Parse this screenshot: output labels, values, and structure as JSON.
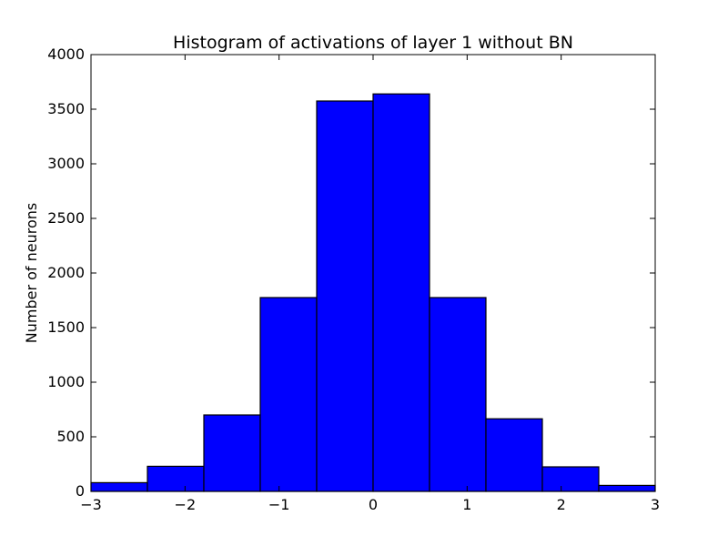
{
  "chart_data": {
    "type": "bar",
    "title": "Histogram of activations of layer 1  without BN",
    "xlabel": "",
    "ylabel": "Number of neurons",
    "xlim": [
      -3,
      3
    ],
    "ylim": [
      0,
      4000
    ],
    "bin_edges": [
      -3,
      -2.4,
      -1.8,
      -1.2,
      -0.6,
      0,
      0.6,
      1.2,
      1.8,
      2.4,
      3
    ],
    "values": [
      80,
      230,
      700,
      1775,
      3575,
      3640,
      1775,
      665,
      225,
      55
    ],
    "x_ticks": [
      -3,
      -2,
      -1,
      0,
      1,
      2,
      3
    ],
    "x_tick_labels": [
      "−3",
      "−2",
      "−1",
      "0",
      "1",
      "2",
      "3"
    ],
    "y_ticks": [
      0,
      500,
      1000,
      1500,
      2000,
      2500,
      3000,
      3500,
      4000
    ],
    "y_tick_labels": [
      "0",
      "500",
      "1000",
      "1500",
      "2000",
      "2500",
      "3000",
      "3500",
      "4000"
    ],
    "grid": false,
    "bar_color": "#0000ff",
    "edge_color": "#000000"
  }
}
